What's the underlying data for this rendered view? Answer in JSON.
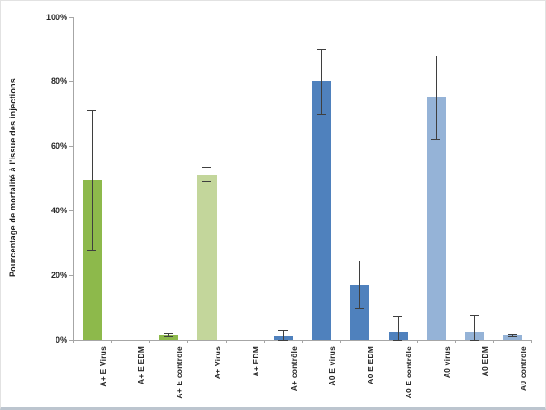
{
  "chart_data": {
    "type": "bar",
    "title": "",
    "xlabel": "",
    "ylabel": "Pourcentage de mortalité à l'issue des injections",
    "ylim": [
      0,
      100
    ],
    "yticks": [
      0,
      20,
      40,
      60,
      80,
      100
    ],
    "ytick_labels": [
      "0%",
      "20%",
      "40%",
      "60%",
      "80%",
      "100%"
    ],
    "grid": false,
    "legend": false,
    "categories": [
      "A+ E Virus",
      "A+ E EDM",
      "A+ E contrôle",
      "A+ Virus",
      "A+ EDM",
      "A+ contrôle",
      "A0 E virus",
      "A0 E EDM",
      "A0 E contrôle",
      "A0 virus",
      "A0 EDM",
      "A0 contrôle"
    ],
    "values": [
      49.5,
      0,
      1.5,
      51,
      0,
      1,
      80,
      17,
      2.5,
      75,
      2.5,
      1.5
    ],
    "error_low": [
      28,
      null,
      1,
      49,
      null,
      0,
      70,
      10,
      0,
      62,
      0,
      1.2
    ],
    "error_high": [
      71,
      null,
      2,
      53.5,
      null,
      3,
      90,
      24.5,
      7.3,
      88,
      7.5,
      1.8
    ],
    "bar_colors": [
      "#8DB94B",
      "#8DB94B",
      "#8DB94B",
      "#C3D69B",
      "#C3D69B",
      "#4F81BD",
      "#4F81BD",
      "#4F81BD",
      "#4F81BD",
      "#95B3D7",
      "#95B3D7",
      "#95B3D7"
    ],
    "axis_color": "#A6A6A6",
    "error_bar_color": "#3F3F3F",
    "text_color": "#262626",
    "background_color": "#FFFFFF"
  }
}
